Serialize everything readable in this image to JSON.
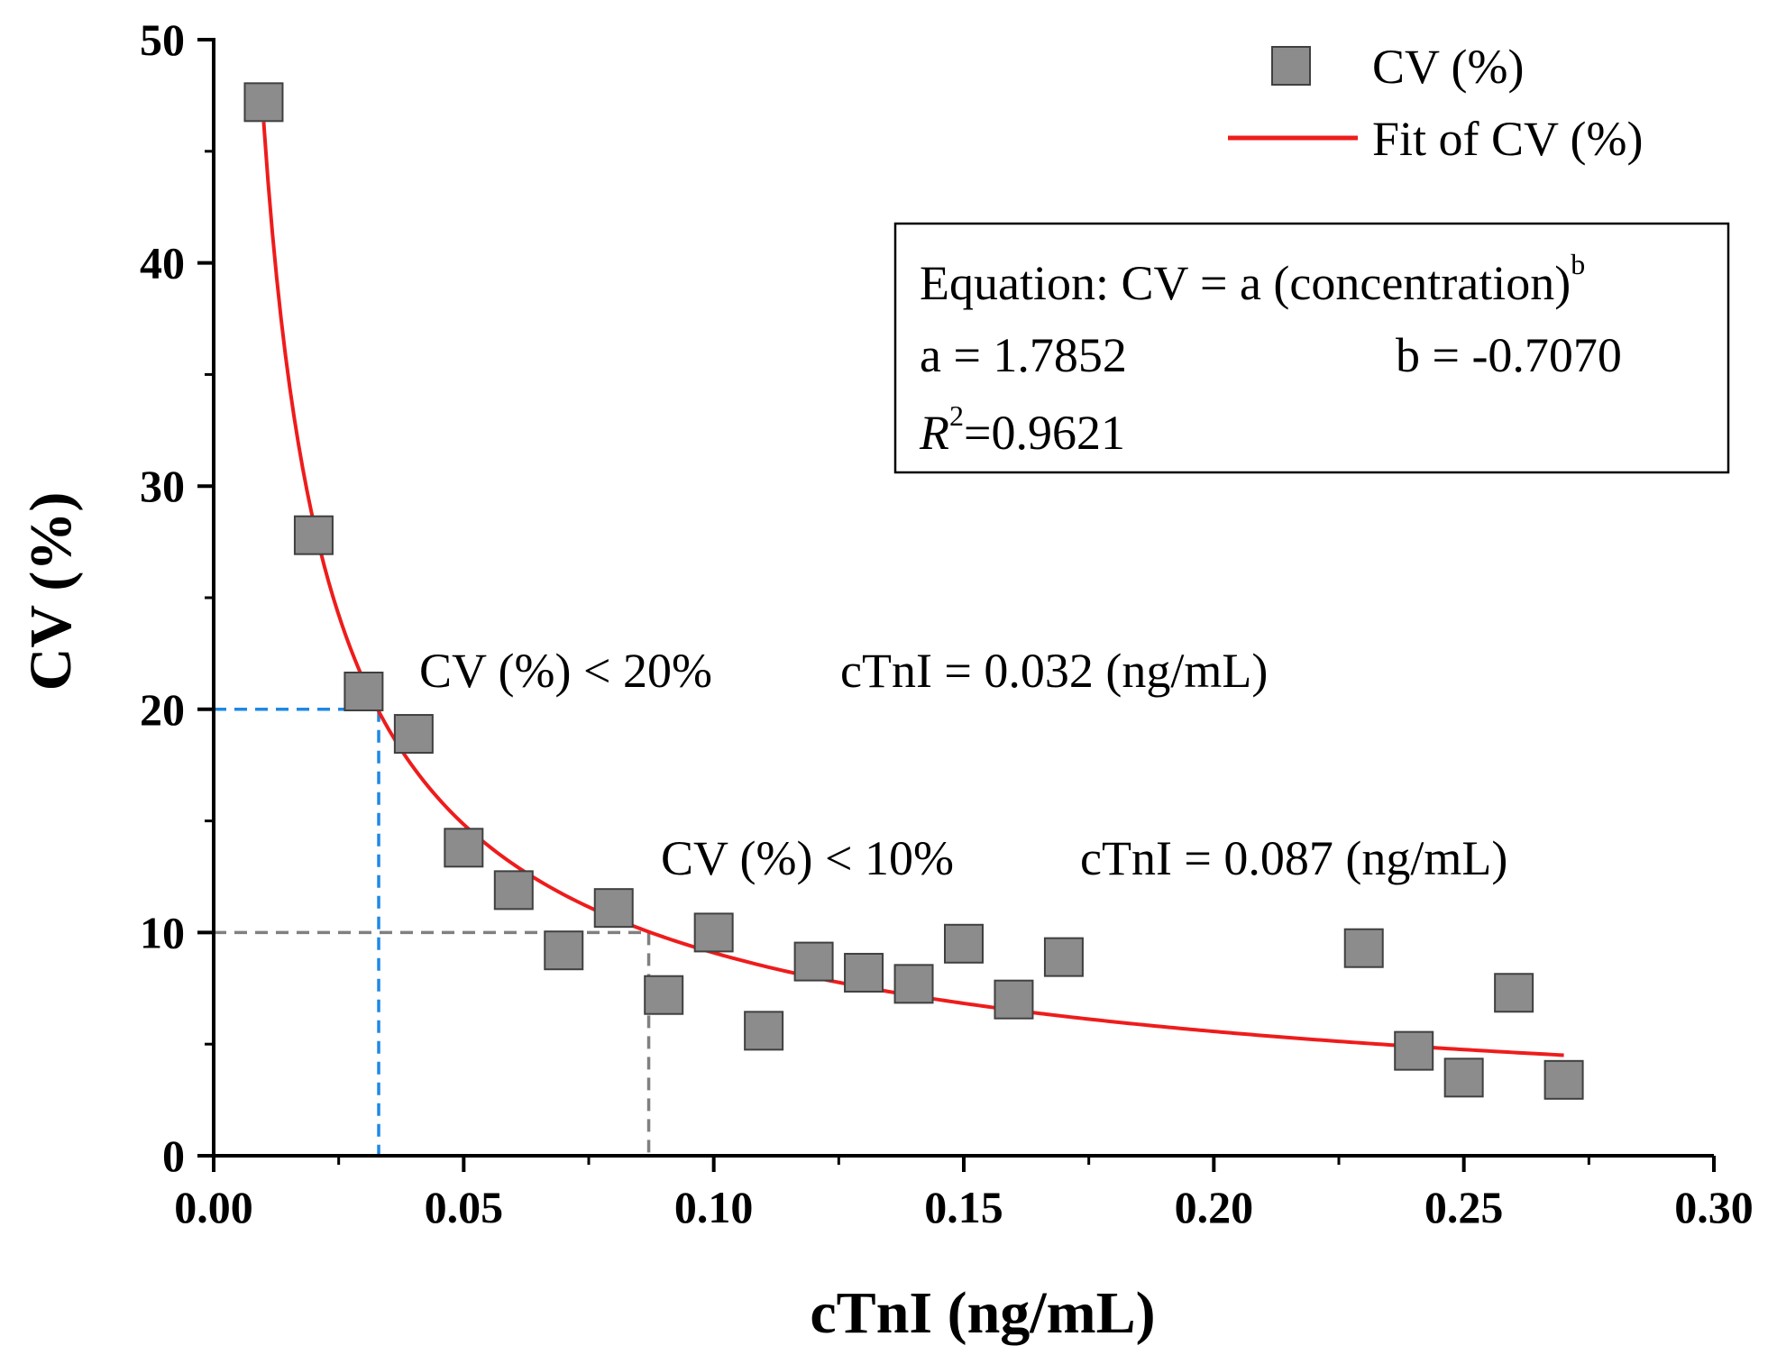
{
  "chart_data": {
    "type": "scatter",
    "xlabel": "cTnI (ng/mL)",
    "ylabel": "CV (%)",
    "xlim": [
      0,
      0.3
    ],
    "ylim": [
      0,
      50
    ],
    "x_ticks": [
      "0.00",
      "0.05",
      "0.10",
      "0.15",
      "0.20",
      "0.25",
      "0.30"
    ],
    "y_ticks": [
      "0",
      "10",
      "20",
      "30",
      "40",
      "50"
    ],
    "series": [
      {
        "name": "CV (%)",
        "kind": "scatter",
        "color": "#8c8c8c",
        "x": [
          0.01,
          0.02,
          0.03,
          0.04,
          0.05,
          0.06,
          0.07,
          0.08,
          0.09,
          0.1,
          0.11,
          0.12,
          0.13,
          0.14,
          0.15,
          0.16,
          0.17,
          0.23,
          0.24,
          0.25,
          0.26,
          0.27
        ],
        "y": [
          47.2,
          27.8,
          20.8,
          18.9,
          13.8,
          11.9,
          9.2,
          11.1,
          7.2,
          10.0,
          5.6,
          8.7,
          8.2,
          7.7,
          9.5,
          7.0,
          8.9,
          9.3,
          4.7,
          3.5,
          7.3,
          3.4
        ]
      },
      {
        "name": "Fit of CV (%)",
        "kind": "line",
        "color": "#ee1c1c",
        "equation": {
          "a": 1.7852,
          "b": -0.707
        },
        "x_range": [
          0.01,
          0.27
        ]
      }
    ],
    "legend": {
      "position": "top-right",
      "entries": [
        "CV (%)",
        "Fit of CV (%)"
      ]
    },
    "equation_box": {
      "line1_prefix": "Equation: CV = a (concentration)",
      "line1_sup": "b",
      "a_text": "a = 1.7852",
      "b_text": "b = -0.7070",
      "r2_symbol": "R",
      "r2_sup": "2",
      "r2_value": "=0.9621"
    },
    "annotations": [
      {
        "cv_text": "CV (%) < 20%",
        "ctni_text": "cTnI = 0.032 (ng/mL)",
        "x": 0.033,
        "y": 20,
        "color": "#1e88e5"
      },
      {
        "cv_text": "CV (%) < 10%",
        "ctni_text": "cTnI = 0.087 (ng/mL)",
        "x": 0.087,
        "y": 10,
        "color": "#808080"
      }
    ],
    "grid": false
  }
}
